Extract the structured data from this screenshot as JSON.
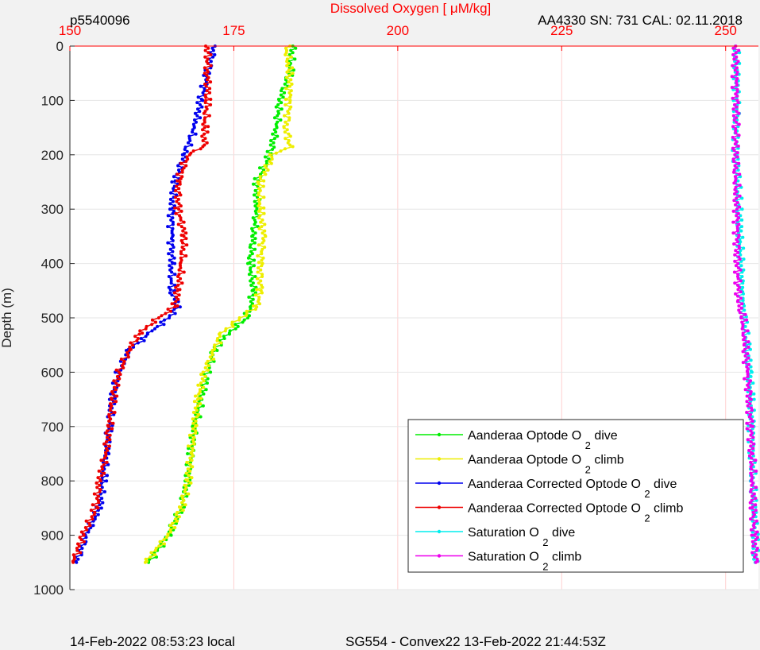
{
  "header": {
    "left": "p5540096",
    "right": "AA4330   SN: 731   CAL: 02.11.2018"
  },
  "footer": {
    "left": "14-Feb-2022 08:53:23 local",
    "right": "SG554 - Convex22 13-Feb-2022 21:44:53Z"
  },
  "chart_data": {
    "type": "line",
    "title": "",
    "xlabel": "Dissolved Oxygen [    μM/kg]",
    "ylabel": "Depth (m)",
    "xlim": [
      150,
      255
    ],
    "ylim": [
      0,
      1000
    ],
    "y_inverted": true,
    "x_axis_position": "top",
    "x_ticks": [
      "150",
      "175",
      "200",
      "225",
      "250"
    ],
    "y_ticks": [
      "0",
      "100",
      "200",
      "300",
      "400",
      "500",
      "600",
      "700",
      "800",
      "900",
      "1000"
    ],
    "grid": true,
    "legend_position": "bottom-right",
    "series": [
      {
        "name": "Aanderaa Optode O",
        "sub": "2",
        "suffix": " dive",
        "color": "#00ee00",
        "depth": [
          0,
          50,
          100,
          150,
          200,
          250,
          300,
          350,
          400,
          450,
          480,
          500,
          530,
          560,
          600,
          650,
          700,
          750,
          800,
          850,
          900,
          950
        ],
        "values": [
          184,
          183.5,
          182,
          181.5,
          180.5,
          178.5,
          178.5,
          178,
          177.5,
          178,
          177.5,
          177,
          174,
          172,
          171,
          170,
          169,
          168.5,
          168,
          167,
          165,
          162
        ]
      },
      {
        "name": "Aanderaa Optode O",
        "sub": "2",
        "suffix": " climb",
        "color": "#eeee00",
        "depth": [
          0,
          50,
          100,
          150,
          185,
          200,
          250,
          300,
          350,
          400,
          450,
          480,
          500,
          530,
          560,
          600,
          650,
          700,
          750,
          800,
          850,
          900,
          950
        ],
        "values": [
          183,
          183.5,
          183.5,
          183,
          183.5,
          181,
          179,
          179,
          179.5,
          179,
          179,
          178.5,
          176,
          173,
          172,
          170.5,
          169.5,
          169,
          168.5,
          168,
          167,
          165,
          161.5
        ]
      },
      {
        "name": "Aanderaa Corrected Optode O",
        "sub": "2",
        "suffix": " dive",
        "color": "#0000ee",
        "depth": [
          0,
          50,
          100,
          150,
          200,
          250,
          300,
          350,
          400,
          450,
          480,
          500,
          530,
          560,
          600,
          650,
          700,
          750,
          800,
          850,
          900,
          950
        ],
        "values": [
          172,
          171,
          170,
          169,
          167.5,
          166,
          165.5,
          165.5,
          165.5,
          165.5,
          166.5,
          165,
          162,
          159,
          157.5,
          156.5,
          156,
          155.5,
          155,
          154.5,
          152.5,
          151
        ]
      },
      {
        "name": "Aanderaa Corrected Optode O",
        "sub": "2",
        "suffix": " climb",
        "color": "#ee0000",
        "depth": [
          0,
          50,
          100,
          150,
          185,
          200,
          250,
          300,
          350,
          400,
          450,
          480,
          500,
          530,
          560,
          600,
          650,
          700,
          750,
          800,
          850,
          900,
          950
        ],
        "values": [
          171,
          171,
          171,
          170.5,
          170.5,
          168,
          166.5,
          166.5,
          167.5,
          167,
          166.5,
          166,
          163.5,
          160.5,
          159,
          157.5,
          156.5,
          156,
          155.5,
          154.5,
          154,
          152,
          150.5
        ]
      },
      {
        "name": "Saturation O",
        "sub": "2",
        "suffix": " dive",
        "color": "#00eeee",
        "depth": [
          0,
          100,
          200,
          300,
          400,
          470,
          500,
          550,
          600,
          650,
          700,
          750,
          800,
          850,
          900,
          950
        ],
        "values": [
          251.5,
          251.7,
          251.6,
          252,
          252.3,
          252.5,
          252.8,
          253.2,
          253.6,
          253.8,
          254,
          254.1,
          254.2,
          254.3,
          254.4,
          254.5
        ]
      },
      {
        "name": "Saturation O",
        "sub": "2",
        "suffix": " climb",
        "color": "#ee00ee",
        "depth": [
          0,
          100,
          200,
          300,
          400,
          470,
          500,
          550,
          600,
          650,
          700,
          750,
          800,
          850,
          900,
          950
        ],
        "values": [
          251.5,
          251.6,
          251.5,
          251.7,
          251.8,
          252,
          252.6,
          253,
          253.3,
          253.6,
          253.8,
          254,
          254.1,
          254.2,
          254.4,
          254.6
        ]
      }
    ]
  }
}
